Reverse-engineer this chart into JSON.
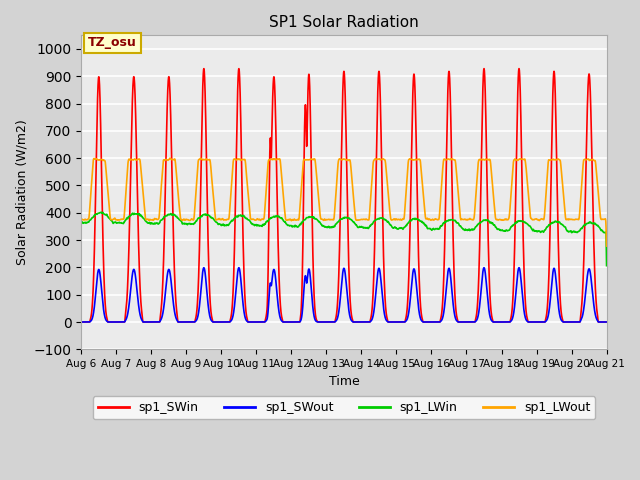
{
  "title": "SP1 Solar Radiation",
  "xlabel": "Time",
  "ylabel": "Solar Radiation (W/m2)",
  "ylim": [
    -100,
    1050
  ],
  "yticks": [
    -100,
    0,
    100,
    200,
    300,
    400,
    500,
    600,
    700,
    800,
    900,
    1000
  ],
  "num_days": 15,
  "xtick_labels": [
    "Aug 6",
    "Aug 7",
    "Aug 8",
    "Aug 9",
    "Aug 10",
    "Aug 11",
    "Aug 12",
    "Aug 13",
    "Aug 14",
    "Aug 15",
    "Aug 16",
    "Aug 17",
    "Aug 18",
    "Aug 19",
    "Aug 20",
    "Aug 21"
  ],
  "colors": {
    "sp1_SWin": "#ff0000",
    "sp1_SWout": "#0000ff",
    "sp1_LWin": "#00cc00",
    "sp1_LWout": "#ffa500"
  },
  "line_width": 1.2,
  "plot_bg_color": "#ebebeb",
  "fig_bg_color": "#d3d3d3",
  "annotation_text": "TZ_osu",
  "annotation_bg": "#ffffcc",
  "annotation_border": "#ccaa00"
}
